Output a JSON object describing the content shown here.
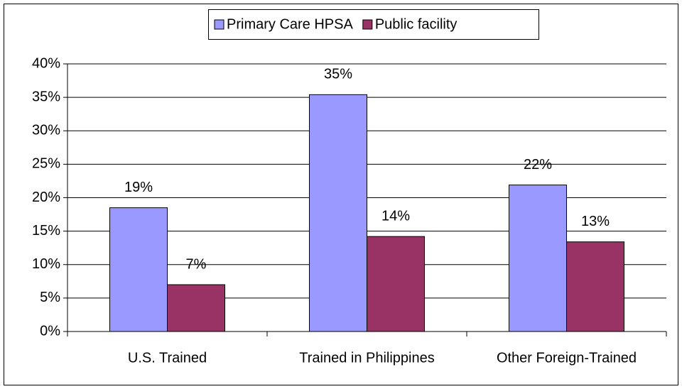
{
  "chart_data": {
    "type": "bar",
    "categories": [
      "U.S. Trained",
      "Trained in Philippines",
      "Other Foreign-Trained"
    ],
    "series": [
      {
        "name": "Primary Care HPSA",
        "color": "#9999ff",
        "values": [
          18.5,
          35.4,
          21.9
        ],
        "value_labels": [
          "19%",
          "35%",
          "22%"
        ]
      },
      {
        "name": "Public facility",
        "color": "#993366",
        "values": [
          7.0,
          14.2,
          13.4
        ],
        "value_labels": [
          "7%",
          "14%",
          "13%"
        ]
      }
    ],
    "ylim": [
      0,
      40
    ],
    "yticks": [
      {
        "value": 0,
        "label": "0%"
      },
      {
        "value": 5,
        "label": "5%"
      },
      {
        "value": 10,
        "label": "10%"
      },
      {
        "value": 15,
        "label": "15%"
      },
      {
        "value": 20,
        "label": "20%"
      },
      {
        "value": 25,
        "label": "25%"
      },
      {
        "value": 30,
        "label": "30%"
      },
      {
        "value": 35,
        "label": "35%"
      },
      {
        "value": 40,
        "label": "40%"
      }
    ],
    "grid": true,
    "legend": "top"
  }
}
